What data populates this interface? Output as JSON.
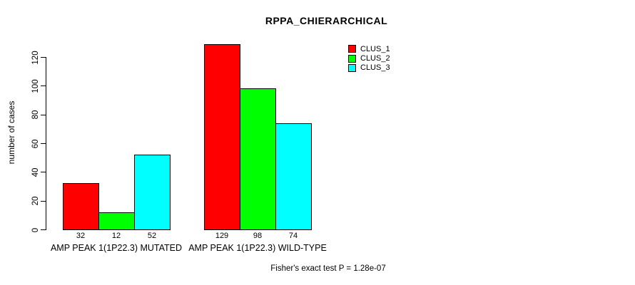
{
  "title": "RPPA_CHIERARCHICAL",
  "footer": "Fisher's exact test P = 1.28e-07",
  "chart_data": {
    "type": "bar",
    "title": "RPPA_CHIERARCHICAL",
    "xlabel": "",
    "ylabel": "number of cases",
    "categories": [
      "AMP PEAK 1(1P22.3) MUTATED",
      "AMP PEAK 1(1P22.3) WILD-TYPE"
    ],
    "series": [
      {
        "name": "CLUS_1",
        "color": "#ff0000",
        "values": [
          32,
          129
        ]
      },
      {
        "name": "CLUS_2",
        "color": "#00ff00",
        "values": [
          12,
          98
        ]
      },
      {
        "name": "CLUS_3",
        "color": "#00ffff",
        "values": [
          52,
          74
        ]
      }
    ],
    "bar_value_labels": [
      [
        "32",
        "12",
        "52"
      ],
      [
        "129",
        "98",
        "74"
      ]
    ],
    "yticks": [
      0,
      20,
      40,
      60,
      80,
      100,
      120
    ],
    "ylim": [
      0,
      130
    ],
    "grid": false,
    "legend_position": "top-right",
    "bar_border_color": "#000000",
    "annotation": "Fisher's exact test P = 1.28e-07"
  }
}
